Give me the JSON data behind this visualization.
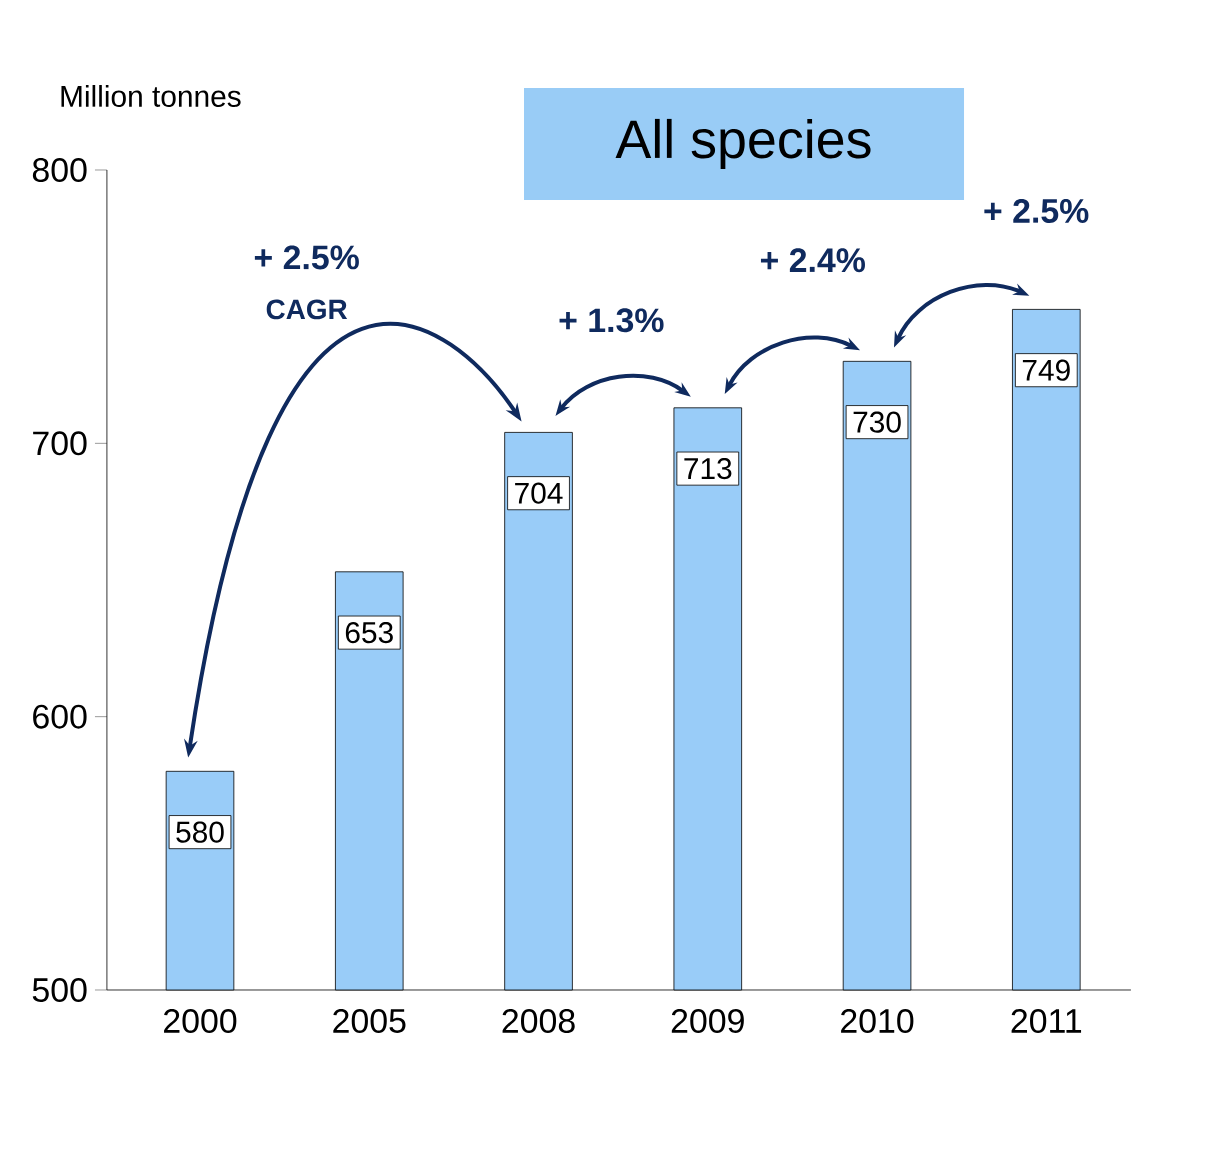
{
  "chart_data": {
    "type": "bar",
    "title": "All species",
    "ylabel": "Million tonnes",
    "categories": [
      "2000",
      "2005",
      "2008",
      "2009",
      "2010",
      "2011"
    ],
    "values": [
      580,
      653,
      704,
      713,
      730,
      749
    ],
    "color": "#99ccf8",
    "ylim": [
      500,
      800
    ],
    "yticks": [
      500,
      600,
      700,
      800
    ],
    "data_labels": true,
    "annotations": [
      "+ 2.5%",
      "CAGR",
      "+ 1.3%",
      "+ 2.4%",
      "+ 2.5%"
    ]
  }
}
